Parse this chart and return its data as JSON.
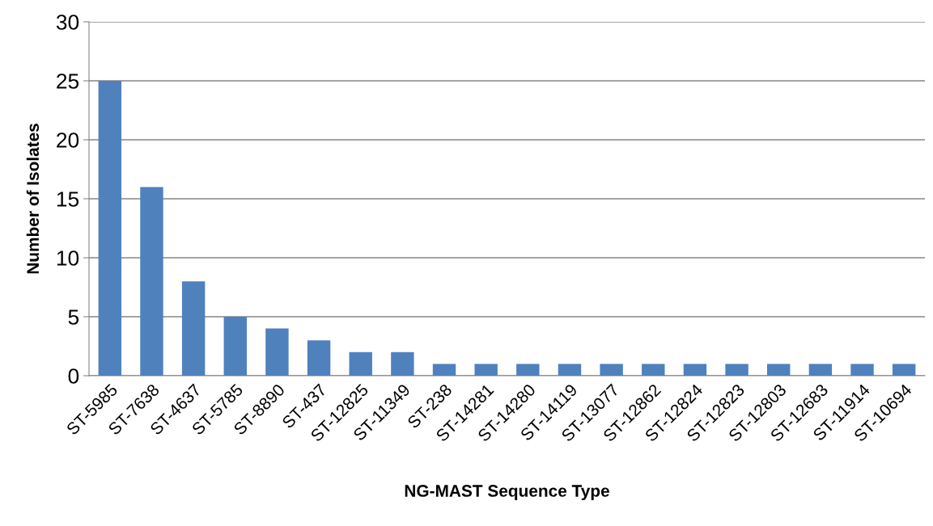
{
  "chart_data": {
    "type": "bar",
    "xlabel": "NG-MAST Sequence Type",
    "ylabel": "Number of Isolates",
    "categories": [
      "ST-5985",
      "ST-7638",
      "ST-4637",
      "ST-5785",
      "ST-8890",
      "ST-437",
      "ST-12825",
      "ST-11349",
      "ST-238",
      "ST-14281",
      "ST-14280",
      "ST-14119",
      "ST-13077",
      "ST-12862",
      "ST-12824",
      "ST-12823",
      "ST-12803",
      "ST-12683",
      "ST-11914",
      "ST-10694"
    ],
    "values": [
      25,
      16,
      8,
      5,
      4,
      3,
      2,
      2,
      1,
      1,
      1,
      1,
      1,
      1,
      1,
      1,
      1,
      1,
      1,
      1
    ],
    "color": "#4f81bd",
    "ylim": [
      0,
      30
    ],
    "yticks": [
      0,
      5,
      10,
      15,
      20,
      25,
      30
    ],
    "grid": "y"
  }
}
